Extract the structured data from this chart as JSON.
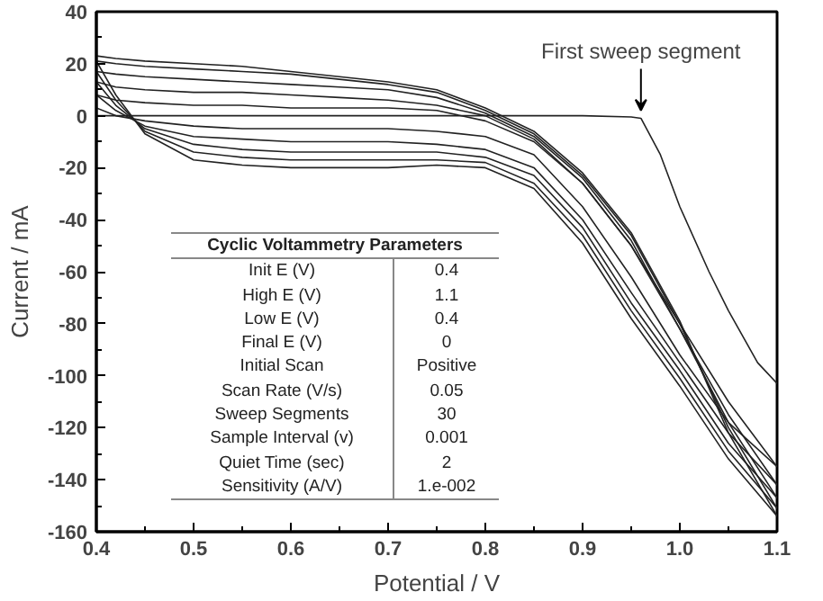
{
  "chart_data": {
    "type": "line",
    "xlabel": "Potential / V",
    "ylabel": "Current / mA",
    "xlim": [
      0.4,
      1.1
    ],
    "ylim": [
      -160,
      40
    ],
    "xticks": [
      0.4,
      0.5,
      0.6,
      0.7,
      0.8,
      0.9,
      {
        "value": 1.0,
        "label": "1.0"
      },
      1.1
    ],
    "yticks": [
      -160,
      -140,
      -120,
      -100,
      -80,
      -60,
      -40,
      -20,
      0,
      20,
      40
    ],
    "grid": false,
    "marker": "none",
    "line_style": "solid",
    "series": [
      {
        "color": "#222222",
        "x": [
          0.4,
          0.5,
          0.6,
          0.7,
          0.8,
          0.9,
          0.95,
          0.96,
          0.98,
          1.0,
          1.03,
          1.05,
          1.08,
          1.1
        ],
        "values": [
          0,
          0,
          0,
          0,
          0,
          0,
          -0.5,
          -1,
          -15,
          -35,
          -60,
          -75,
          -95,
          -103
        ]
      },
      {
        "color": "#222222",
        "x": [
          0.4,
          0.42,
          0.45,
          0.5,
          0.55,
          0.6,
          0.65,
          0.7,
          0.75,
          0.8,
          0.85,
          0.9,
          0.95,
          1.0,
          1.05,
          1.1
        ],
        "values": [
          3,
          0,
          -2,
          -4,
          -5,
          -5,
          -5,
          -5,
          -6,
          -8,
          -15,
          -35,
          -62,
          -92,
          -118,
          -135
        ]
      },
      {
        "color": "#222222",
        "x": [
          0.4,
          0.42,
          0.45,
          0.5,
          0.55,
          0.6,
          0.65,
          0.7,
          0.75,
          0.8,
          0.85,
          0.9,
          0.95,
          1.0,
          1.05,
          1.1
        ],
        "values": [
          8,
          6,
          5,
          4,
          4,
          3,
          3,
          3,
          2,
          -2,
          -10,
          -26,
          -50,
          -80,
          -110,
          -135
        ]
      },
      {
        "color": "#222222",
        "x": [
          0.4,
          0.42,
          0.45,
          0.5,
          0.55,
          0.6,
          0.65,
          0.7,
          0.75,
          0.8,
          0.85,
          0.9,
          0.95,
          1.0,
          1.05,
          1.1
        ],
        "values": [
          8,
          2,
          -4,
          -8,
          -9,
          -10,
          -10,
          -10,
          -11,
          -13,
          -20,
          -40,
          -68,
          -95,
          -122,
          -142
        ]
      },
      {
        "color": "#222222",
        "x": [
          0.4,
          0.42,
          0.45,
          0.5,
          0.55,
          0.6,
          0.65,
          0.7,
          0.75,
          0.8,
          0.85,
          0.9,
          0.95,
          1.0,
          1.05,
          1.1
        ],
        "values": [
          13,
          11,
          10,
          9,
          9,
          8,
          7,
          6,
          4,
          0,
          -9,
          -26,
          -50,
          -82,
          -115,
          -142
        ]
      },
      {
        "color": "#222222",
        "x": [
          0.4,
          0.42,
          0.45,
          0.5,
          0.55,
          0.6,
          0.65,
          0.7,
          0.75,
          0.8,
          0.85,
          0.9,
          0.95,
          1.0,
          1.05,
          1.1
        ],
        "values": [
          13,
          4,
          -5,
          -11,
          -13,
          -14,
          -14,
          -14,
          -14,
          -16,
          -23,
          -43,
          -72,
          -98,
          -126,
          -147
        ]
      },
      {
        "color": "#222222",
        "x": [
          0.4,
          0.42,
          0.45,
          0.5,
          0.55,
          0.6,
          0.65,
          0.7,
          0.75,
          0.8,
          0.85,
          0.9,
          0.95,
          1.0,
          1.05,
          1.1
        ],
        "values": [
          17,
          16,
          15,
          14,
          13,
          12,
          11,
          10,
          7,
          1,
          -8,
          -24,
          -48,
          -82,
          -118,
          -147
        ]
      },
      {
        "color": "#222222",
        "x": [
          0.4,
          0.42,
          0.45,
          0.5,
          0.55,
          0.6,
          0.65,
          0.7,
          0.75,
          0.8,
          0.85,
          0.9,
          0.95,
          1.0,
          1.05,
          1.1
        ],
        "values": [
          17,
          6,
          -6,
          -14,
          -16,
          -17,
          -17,
          -17,
          -17,
          -18,
          -26,
          -46,
          -75,
          -101,
          -129,
          -151
        ]
      },
      {
        "color": "#222222",
        "x": [
          0.4,
          0.42,
          0.45,
          0.5,
          0.55,
          0.6,
          0.65,
          0.7,
          0.75,
          0.8,
          0.85,
          0.9,
          0.95,
          1.0,
          1.05,
          1.1
        ],
        "values": [
          21,
          20,
          19,
          18,
          17,
          16,
          14,
          12,
          9,
          2,
          -7,
          -23,
          -46,
          -80,
          -120,
          -151
        ]
      },
      {
        "color": "#222222",
        "x": [
          0.4,
          0.42,
          0.45,
          0.5,
          0.55,
          0.6,
          0.65,
          0.7,
          0.75,
          0.8,
          0.85,
          0.9,
          0.95,
          1.0,
          1.05,
          1.1
        ],
        "values": [
          21,
          8,
          -7,
          -17,
          -19,
          -20,
          -20,
          -20,
          -19,
          -20,
          -28,
          -49,
          -78,
          -104,
          -132,
          -154
        ]
      },
      {
        "color": "#222222",
        "x": [
          0.4,
          0.42,
          0.45,
          0.5,
          0.55,
          0.6,
          0.65,
          0.7,
          0.75,
          0.8,
          0.85,
          0.9,
          0.95,
          1.0,
          1.05,
          1.1
        ],
        "values": [
          23,
          22,
          21,
          20,
          19,
          17,
          15,
          13,
          10,
          3,
          -6,
          -22,
          -45,
          -79,
          -122,
          -154
        ]
      }
    ],
    "annotations": [
      {
        "text": "First sweep segment",
        "x": 0.96,
        "y": 0
      },
      "Cyclic Voltammetry Parameters",
      "Init E (V)",
      "0.4",
      "High E (V)",
      "1.1",
      "Low E (V)",
      "0.4",
      "Final E (V)",
      "0",
      "Initial Scan",
      "Positive",
      "Scan Rate (V/s)",
      "0.05",
      "Sweep Segments",
      "30",
      "Sample Interval (v)",
      "0.001",
      "Quiet Time (sec)",
      "2",
      "Sensitivity (A/V)",
      "1.e-002"
    ]
  }
}
